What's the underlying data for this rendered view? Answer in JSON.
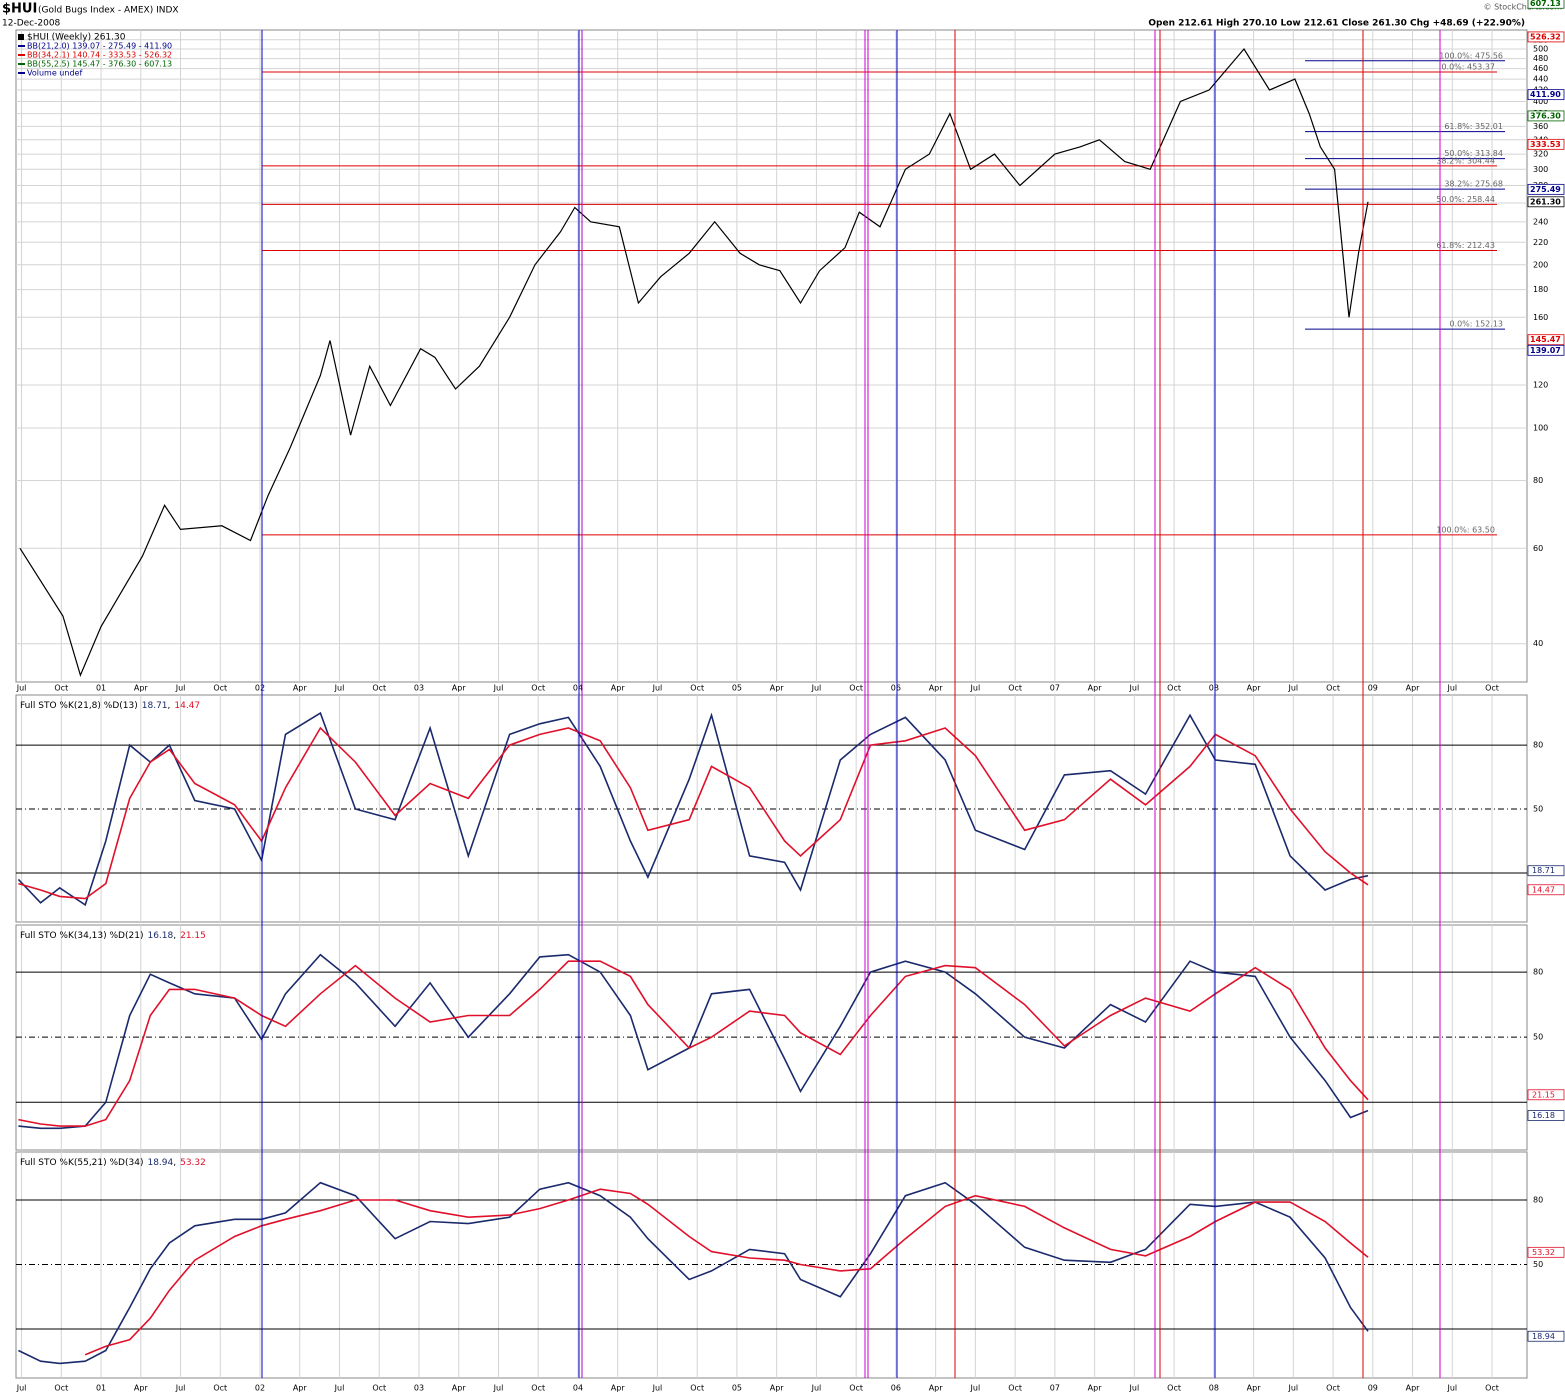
{
  "chart_data": [
    {
      "type": "line",
      "log_scale": true,
      "grid": true,
      "title": "$HUI",
      "subtitle": "(Gold Bugs Index - AMEX) INDX",
      "date": "12-Dec-2008",
      "ohlc": "Open 212.61 High 270.10 Low 212.61 Close 261.30 Chg +48.69 (+22.90%)",
      "source": "© StockCharts.com",
      "xlim": [
        2000.465,
        2009.97
      ],
      "xticks": [
        {
          "value": 2000.5,
          "label": "Jul"
        },
        {
          "value": 2000.75,
          "label": "Oct"
        },
        {
          "value": 2001,
          "label": "01"
        },
        {
          "value": 2001.25,
          "label": "Apr"
        },
        {
          "value": 2001.5,
          "label": "Jul"
        },
        {
          "value": 2001.75,
          "label": "Oct"
        },
        {
          "value": 2002,
          "label": "02"
        },
        {
          "value": 2002.25,
          "label": "Apr"
        },
        {
          "value": 2002.5,
          "label": "Jul"
        },
        {
          "value": 2002.75,
          "label": "Oct"
        },
        {
          "value": 2003,
          "label": "03"
        },
        {
          "value": 2003.25,
          "label": "Apr"
        },
        {
          "value": 2003.5,
          "label": "Jul"
        },
        {
          "value": 2003.75,
          "label": "Oct"
        },
        {
          "value": 2004,
          "label": "04"
        },
        {
          "value": 2004.25,
          "label": "Apr"
        },
        {
          "value": 2004.5,
          "label": "Jul"
        },
        {
          "value": 2004.75,
          "label": "Oct"
        },
        {
          "value": 2005,
          "label": "05"
        },
        {
          "value": 2005.25,
          "label": "Apr"
        },
        {
          "value": 2005.5,
          "label": "Jul"
        },
        {
          "value": 2005.75,
          "label": "Oct"
        },
        {
          "value": 2006,
          "label": "06"
        },
        {
          "value": 2006.25,
          "label": "Apr"
        },
        {
          "value": 2006.5,
          "label": "Jul"
        },
        {
          "value": 2006.75,
          "label": "Oct"
        },
        {
          "value": 2007,
          "label": "07"
        },
        {
          "value": 2007.25,
          "label": "Apr"
        },
        {
          "value": 2007.5,
          "label": "Jul"
        },
        {
          "value": 2007.75,
          "label": "Oct"
        },
        {
          "value": 2008,
          "label": "08"
        },
        {
          "value": 2008.25,
          "label": "Apr"
        },
        {
          "value": 2008.5,
          "label": "Jul"
        },
        {
          "value": 2008.75,
          "label": "Oct"
        },
        {
          "value": 2009,
          "label": "09"
        },
        {
          "value": 2009.25,
          "label": "Apr"
        },
        {
          "value": 2009.5,
          "label": "Jul"
        },
        {
          "value": 2009.75,
          "label": "Oct"
        }
      ],
      "ylim": [
        34,
        542
      ],
      "yticks": [
        40,
        60,
        80,
        100,
        120,
        140,
        160,
        180,
        200,
        220,
        240,
        260,
        280,
        300,
        320,
        340,
        360,
        380,
        400,
        420,
        440,
        460,
        480,
        500,
        520
      ],
      "x": [
        2000.49,
        2000.76,
        2000.87,
        2001.0,
        2001.26,
        2001.4,
        2001.5,
        2001.76,
        2001.94,
        2002.05,
        2002.19,
        2002.38,
        2002.44,
        2002.57,
        2002.69,
        2002.82,
        2003.01,
        2003.1,
        2003.23,
        2003.38,
        2003.57,
        2003.73,
        2003.89,
        2003.98,
        2004.08,
        2004.26,
        2004.38,
        2004.52,
        2004.7,
        2004.86,
        2005.02,
        2005.14,
        2005.27,
        2005.4,
        2005.52,
        2005.68,
        2005.77,
        2005.9,
        2006.06,
        2006.21,
        2006.34,
        2006.47,
        2006.62,
        2006.78,
        2007.0,
        2007.16,
        2007.28,
        2007.44,
        2007.6,
        2007.79,
        2007.97,
        2008.19,
        2008.35,
        2008.51,
        2008.6,
        2008.67,
        2008.76,
        2008.85,
        2008.91,
        2008.97
      ],
      "series": [
        {
          "name": "$HUI (Weekly) 261.30",
          "color": "#000000",
          "values": [
            60,
            45,
            35,
            43,
            58,
            72,
            65,
            66,
            62,
            75,
            92,
            125,
            145,
            97,
            130,
            110,
            140,
            135,
            118,
            130,
            160,
            200,
            230,
            255,
            240,
            235,
            170,
            190,
            210,
            240,
            210,
            200,
            195,
            170,
            195,
            215,
            250,
            235,
            300,
            320,
            380,
            300,
            320,
            280,
            320,
            330,
            340,
            310,
            300,
            400,
            420,
            500,
            420,
            440,
            380,
            330,
            300,
            160,
            210,
            261.3
          ]
        }
      ],
      "legend_items": [
        {
          "name": "BB(21,2.0) 139.07 - 275.49 - 411.90",
          "color": "#00008b"
        },
        {
          "name": "BB(34,2.1) 140.74 - 333.53 - 526.32",
          "color": "#dd0000"
        },
        {
          "name": "BB(55,2.5) 145.47 - 376.30 - 607.13",
          "color": "#006400"
        },
        {
          "name": "Volume undef",
          "color": "#00008b"
        }
      ],
      "axis_labels": [
        {
          "value": 607.13,
          "label": "607.13",
          "color": "#006400"
        },
        {
          "value": 526.32,
          "label": "526.32",
          "color": "#dd0000"
        },
        {
          "value": 411.9,
          "label": "411.90",
          "color": "#00008b"
        },
        {
          "value": 376.3,
          "label": "376.30",
          "color": "#006400"
        },
        {
          "value": 333.53,
          "label": "333.53",
          "color": "#dd0000"
        },
        {
          "value": 275.49,
          "label": "275.49",
          "color": "#00008b"
        },
        {
          "value": 261.3,
          "label": "261.30",
          "color": "#000000"
        },
        {
          "value": 145.47,
          "label": "145.47",
          "color": "#dd0000"
        },
        {
          "value": 139.07,
          "label": "139.07",
          "color": "#00008b"
        }
      ],
      "annotations": [
        {
          "value": 475.56,
          "label": "100.0%: 475.56",
          "color": "#00008b"
        },
        {
          "value": 453.37,
          "label": "0.0%: 453.37",
          "color": "#dd0000"
        },
        {
          "value": 352.01,
          "label": "61.8%: 352.01",
          "color": "#00008b"
        },
        {
          "value": 313.84,
          "label": "50.0%: 313.84",
          "color": "#00008b"
        },
        {
          "value": 304.44,
          "label": "38.2%: 304.44",
          "color": "#dd0000"
        },
        {
          "value": 275.68,
          "label": "38.2%: 275.68",
          "color": "#00008b"
        },
        {
          "value": 258.44,
          "label": "50.0%: 258.44",
          "color": "#dd0000"
        },
        {
          "value": 212.43,
          "label": "61.8%: 212.43",
          "color": "#dd0000"
        },
        {
          "value": 152.13,
          "label": "0.0%: 152.13",
          "color": "#00008b"
        },
        {
          "value": 63.5,
          "label": "100.0%: 63.50",
          "color": "#dd0000"
        }
      ]
    },
    {
      "type": "line",
      "title": "Full STO %K(21,8) %D(13)",
      "value_separator": ",",
      "ylim": [
        -3,
        103.5
      ],
      "yticks": [
        50,
        80
      ],
      "dash_dot_at": 50,
      "oversold": 20,
      "x": [
        2000.48,
        2000.62,
        2000.74,
        2000.9,
        2001.03,
        2001.18,
        2001.31,
        2001.43,
        2001.59,
        2001.84,
        2002.01,
        2002.16,
        2002.38,
        2002.6,
        2002.85,
        2003.07,
        2003.31,
        2003.57,
        2003.76,
        2003.94,
        2004.14,
        2004.33,
        2004.44,
        2004.7,
        2004.84,
        2005.08,
        2005.3,
        2005.4,
        2005.65,
        2005.84,
        2006.06,
        2006.31,
        2006.5,
        2006.81,
        2007.06,
        2007.35,
        2007.57,
        2007.85,
        2008.01,
        2008.26,
        2008.48,
        2008.7,
        2008.86,
        2008.97
      ],
      "series": [
        {
          "name": "%K",
          "color": "#1a2a6c",
          "values": [
            17,
            6,
            13,
            5,
            35,
            80,
            72,
            80,
            54,
            50,
            26,
            85,
            95,
            50,
            45,
            88,
            28,
            85,
            90,
            93,
            70,
            35,
            18,
            64,
            94,
            28,
            25,
            12,
            73,
            85,
            93,
            73,
            40,
            31,
            66,
            68,
            57,
            94,
            73,
            71,
            28,
            12,
            17,
            18.71
          ]
        },
        {
          "name": "%D",
          "color": "#e0102a",
          "values": [
            15,
            12,
            9,
            8,
            15,
            55,
            72,
            78,
            62,
            52,
            35,
            60,
            88,
            72,
            47,
            62,
            55,
            80,
            85,
            88,
            82,
            60,
            40,
            45,
            70,
            60,
            35,
            28,
            45,
            80,
            82,
            88,
            75,
            40,
            45,
            64,
            52,
            70,
            85,
            75,
            50,
            30,
            20,
            14.47
          ]
        }
      ]
    },
    {
      "type": "line",
      "title": "Full STO %K(34,13) %D(21)",
      "value_separator": ",",
      "ylim": [
        -2,
        101.7
      ],
      "yticks": [
        50,
        80
      ],
      "dash_dot_at": 50,
      "oversold": 20,
      "x": [
        2000.48,
        2000.62,
        2000.74,
        2000.9,
        2001.03,
        2001.18,
        2001.31,
        2001.43,
        2001.59,
        2001.84,
        2002.01,
        2002.16,
        2002.38,
        2002.6,
        2002.85,
        2003.07,
        2003.31,
        2003.57,
        2003.76,
        2003.94,
        2004.14,
        2004.33,
        2004.44,
        2004.7,
        2004.84,
        2005.08,
        2005.3,
        2005.4,
        2005.65,
        2005.84,
        2006.06,
        2006.31,
        2006.5,
        2006.81,
        2007.06,
        2007.35,
        2007.57,
        2007.85,
        2008.01,
        2008.26,
        2008.48,
        2008.7,
        2008.86,
        2008.97
      ],
      "series": [
        {
          "name": "%K",
          "color": "#1a2a6c",
          "values": [
            9,
            8,
            8,
            9,
            20,
            60,
            79,
            75,
            70,
            68,
            49,
            70,
            88,
            75,
            55,
            75,
            50,
            70,
            87,
            88,
            80,
            60,
            35,
            45,
            70,
            72,
            40,
            25,
            55,
            80,
            85,
            80,
            70,
            50,
            45,
            65,
            57,
            85,
            80,
            78,
            50,
            30,
            13,
            16.18
          ]
        },
        {
          "name": "%D",
          "color": "#e0102a",
          "values": [
            12,
            10,
            9,
            9,
            12,
            30,
            60,
            72,
            72,
            68,
            60,
            55,
            70,
            83,
            68,
            57,
            60,
            60,
            72,
            85,
            85,
            78,
            65,
            45,
            50,
            62,
            60,
            52,
            42,
            60,
            78,
            83,
            82,
            65,
            46,
            60,
            68,
            62,
            70,
            82,
            72,
            45,
            30,
            21.15
          ]
        }
      ]
    },
    {
      "type": "line",
      "title": "Full STO %K(55,21) %D(34)",
      "value_separator": ",",
      "ylim": [
        -2.8,
        102.3
      ],
      "yticks": [
        50,
        80
      ],
      "dash_dot_at": 50,
      "oversold": 20,
      "x": [
        2000.48,
        2000.62,
        2000.74,
        2000.9,
        2001.03,
        2001.18,
        2001.31,
        2001.43,
        2001.59,
        2001.84,
        2002.01,
        2002.16,
        2002.38,
        2002.6,
        2002.85,
        2003.07,
        2003.31,
        2003.57,
        2003.76,
        2003.94,
        2004.14,
        2004.33,
        2004.44,
        2004.7,
        2004.84,
        2005.08,
        2005.3,
        2005.4,
        2005.65,
        2005.84,
        2006.06,
        2006.31,
        2006.5,
        2006.81,
        2007.06,
        2007.35,
        2007.57,
        2007.85,
        2008.01,
        2008.26,
        2008.48,
        2008.7,
        2008.86,
        2008.97
      ],
      "series": [
        {
          "name": "%K",
          "color": "#1a2a6c",
          "values": [
            10,
            5,
            4,
            5,
            10,
            30,
            48,
            60,
            68,
            71,
            71,
            74,
            88,
            82,
            62,
            70,
            69,
            72,
            85,
            88,
            82,
            72,
            62,
            43,
            47,
            57,
            55,
            43,
            35,
            55,
            82,
            88,
            78,
            58,
            52,
            51,
            57,
            78,
            77,
            79,
            72,
            53,
            30,
            18.94
          ]
        },
        {
          "name": "%D",
          "color": "#e0102a",
          "values": [
            null,
            null,
            null,
            8,
            12,
            15,
            25,
            38,
            52,
            63,
            68,
            71,
            75,
            80,
            80,
            75,
            72,
            73,
            76,
            80,
            85,
            83,
            78,
            63,
            56,
            53,
            52,
            50,
            47,
            48,
            62,
            77,
            82,
            77,
            67,
            57,
            54,
            63,
            70,
            79,
            79,
            70,
            60,
            53.32
          ]
        }
      ]
    }
  ]
}
